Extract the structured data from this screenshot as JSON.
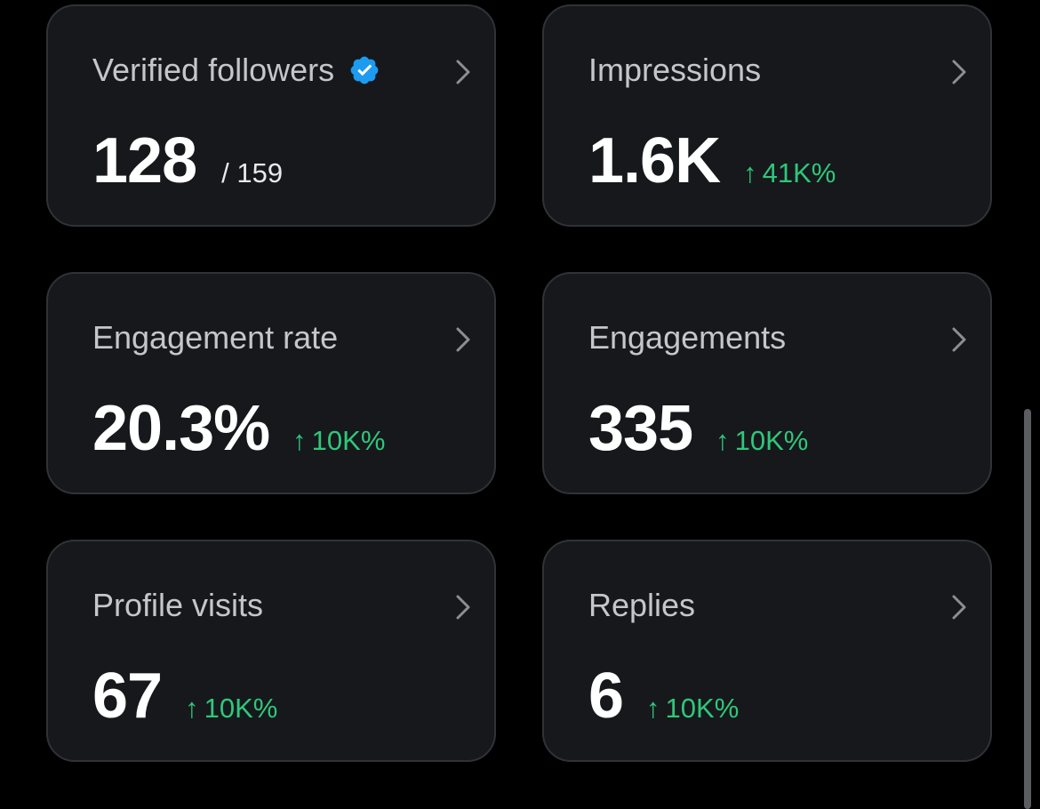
{
  "colors": {
    "background": "#000000",
    "card": "#16181c",
    "card_border": "#2f3336",
    "positive": "#2fc77a",
    "verified": "#1d9bf0"
  },
  "cards": [
    {
      "label": "Verified followers",
      "value": "128",
      "total": "/ 159",
      "icon": "verified-badge-icon"
    },
    {
      "label": "Impressions",
      "value": "1.6K",
      "change_arrow": "↑",
      "change": "41K%"
    },
    {
      "label": "Engagement rate",
      "value": "20.3%",
      "change_arrow": "↑",
      "change": "10K%"
    },
    {
      "label": "Engagements",
      "value": "335",
      "change_arrow": "↑",
      "change": "10K%"
    },
    {
      "label": "Profile visits",
      "value": "67",
      "change_arrow": "↑",
      "change": "10K%"
    },
    {
      "label": "Replies",
      "value": "6",
      "change_arrow": "↑",
      "change": "10K%"
    }
  ]
}
